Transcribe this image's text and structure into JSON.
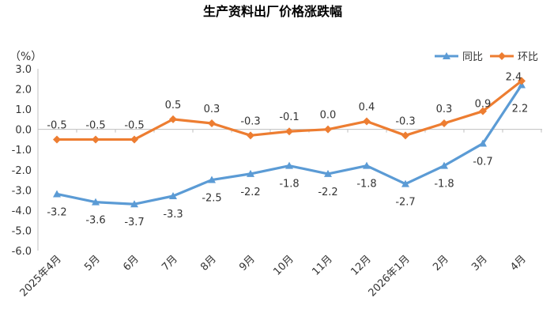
{
  "chart_data": {
    "type": "line",
    "title": "生产资料出厂价格涨跌幅",
    "unit_label": "（%）",
    "categories": [
      "2025年4月",
      "5月",
      "6月",
      "7月",
      "8月",
      "9月",
      "10月",
      "11月",
      "12月",
      "2026年1月",
      "2月",
      "3月",
      "4月"
    ],
    "ylim": [
      -6.0,
      3.0
    ],
    "yticks": [
      "3.0",
      "2.0",
      "1.0",
      "0.0",
      "-1.0",
      "-2.0",
      "-3.0",
      "-4.0",
      "-5.0",
      "-6.0"
    ],
    "legend_position": "top-right",
    "grid": false,
    "series": [
      {
        "name": "同比",
        "color": "#5B9BD5",
        "marker": "triangle",
        "values": [
          -3.2,
          -3.6,
          -3.7,
          -3.3,
          -2.5,
          -2.2,
          -1.8,
          -2.2,
          -1.8,
          -2.7,
          -1.8,
          -0.7,
          2.2
        ],
        "labels": [
          "-3.2",
          "-3.6",
          "-3.7",
          "-3.3",
          "-2.5",
          "-2.2",
          "-1.8",
          "-2.2",
          "-1.8",
          "-2.7",
          "-1.8",
          "-0.7",
          "2.2"
        ]
      },
      {
        "name": "环比",
        "color": "#ED7D31",
        "marker": "diamond",
        "values": [
          -0.5,
          -0.5,
          -0.5,
          0.5,
          0.3,
          -0.3,
          -0.1,
          0.0,
          0.4,
          -0.3,
          0.3,
          0.9,
          2.4
        ],
        "labels": [
          "-0.5",
          "-0.5",
          "-0.5",
          "0.5",
          "0.3",
          "-0.3",
          "-0.1",
          "0.0",
          "0.4",
          "-0.3",
          "0.3",
          "0.9",
          "2.4"
        ]
      }
    ]
  }
}
